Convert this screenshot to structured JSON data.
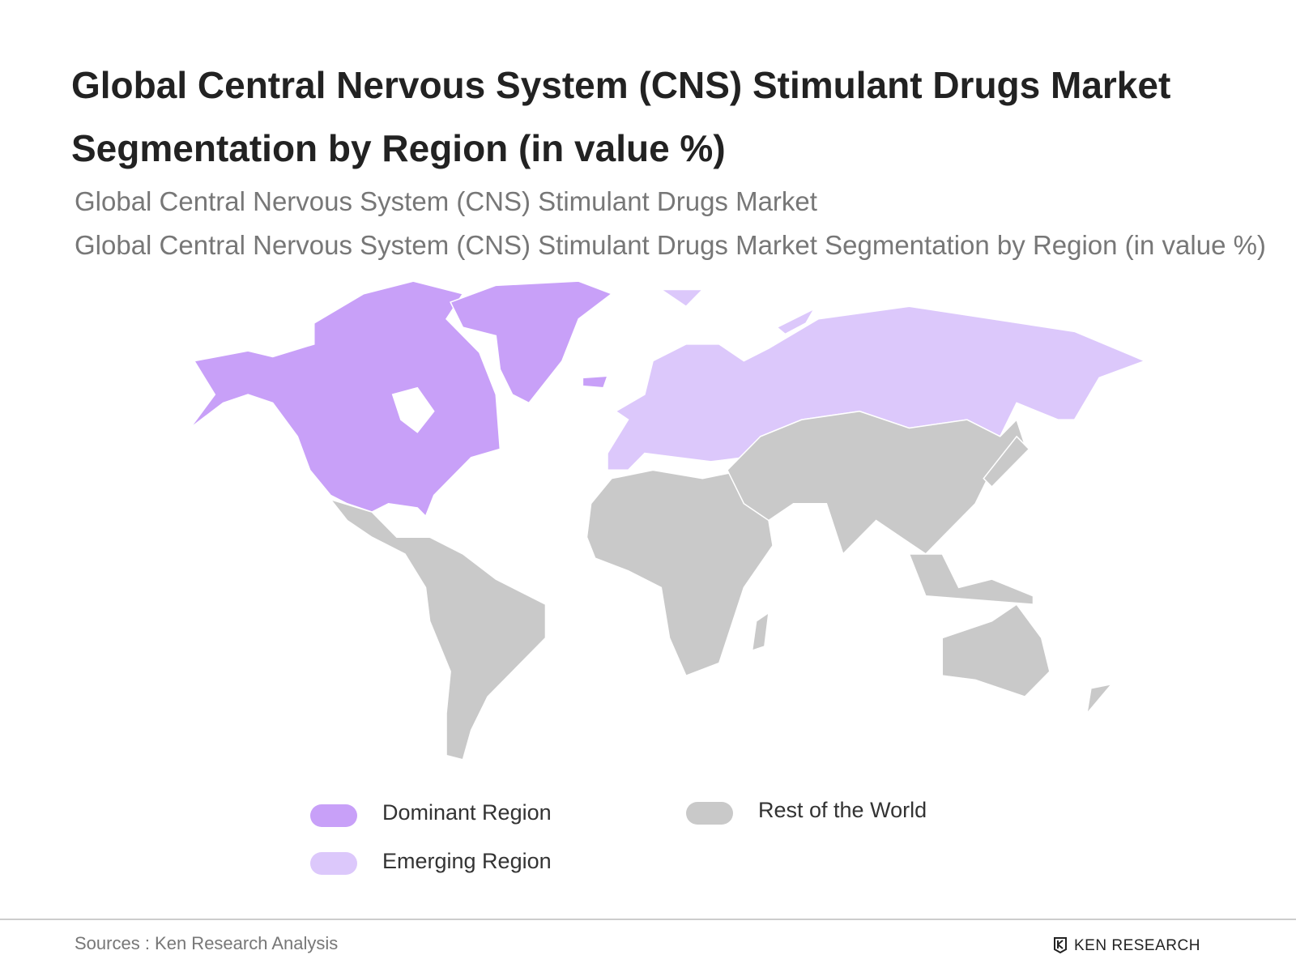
{
  "header": {
    "title": "Global Central Nervous System (CNS) Stimulant Drugs Market Segmentation by Region (in value %)",
    "subtitle_lines": [
      "Global Central Nervous System (CNS) Stimulant Drugs Market",
      "Global Central Nervous System (CNS) Stimulant Drugs Market Segmentation by Region (in value %)"
    ]
  },
  "legend": [
    {
      "label": "Dominant Region",
      "color": "#c8a0f8"
    },
    {
      "label": "Emerging Region",
      "color": "#dcc8fb"
    },
    {
      "label": "Rest of the World",
      "color": "#c9c9c9"
    }
  ],
  "footer": {
    "source": "Sources : Ken Research Analysis",
    "brand": "KEN RESEARCH"
  }
}
